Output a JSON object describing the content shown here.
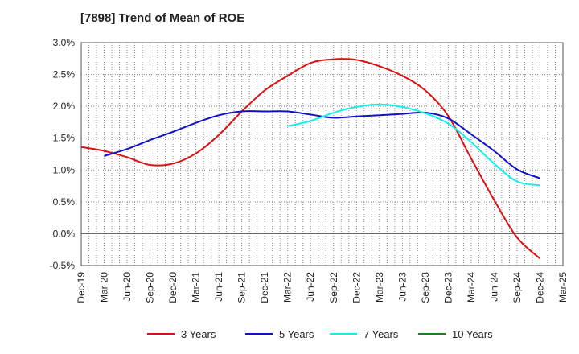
{
  "chart_data": {
    "type": "line",
    "title": "[7898]  Trend of Mean of ROE",
    "xlabel": "",
    "ylabel": "",
    "ylim": [
      -0.5,
      3.0
    ],
    "yticks": [
      "3.0%",
      "2.5%",
      "2.0%",
      "1.5%",
      "1.0%",
      "0.5%",
      "0.0%",
      "-0.5%"
    ],
    "ytick_values": [
      3.0,
      2.5,
      2.0,
      1.5,
      1.0,
      0.5,
      0.0,
      -0.5
    ],
    "x_categories": [
      "Dec-19",
      "Mar-20",
      "Jun-20",
      "Sep-20",
      "Dec-20",
      "Mar-21",
      "Jun-21",
      "Sep-21",
      "Dec-21",
      "Mar-22",
      "Jun-22",
      "Sep-22",
      "Dec-22",
      "Mar-23",
      "Jun-23",
      "Sep-23",
      "Dec-23",
      "Mar-24",
      "Jun-24",
      "Sep-24",
      "Dec-24",
      "Mar-25"
    ],
    "grid": true,
    "legend_position": "bottom",
    "series": [
      {
        "name": "3 Years",
        "color": "#dd1111",
        "values": [
          1.36,
          1.3,
          1.2,
          1.08,
          1.1,
          1.26,
          1.55,
          1.92,
          2.25,
          2.48,
          2.68,
          2.74,
          2.73,
          2.63,
          2.48,
          2.25,
          1.85,
          1.18,
          0.53,
          -0.06,
          -0.39,
          null
        ]
      },
      {
        "name": "5 Years",
        "color": "#1111cc",
        "values": [
          null,
          1.22,
          1.33,
          1.47,
          1.6,
          1.74,
          1.86,
          1.92,
          1.92,
          1.92,
          1.87,
          1.82,
          1.84,
          1.86,
          1.88,
          1.9,
          1.81,
          1.56,
          1.3,
          1.01,
          0.87,
          null
        ]
      },
      {
        "name": "7 Years",
        "color": "#11eeee",
        "values": [
          null,
          null,
          null,
          null,
          null,
          null,
          null,
          null,
          null,
          1.69,
          1.77,
          1.9,
          1.99,
          2.03,
          1.99,
          1.89,
          1.73,
          1.44,
          1.1,
          0.82,
          0.76,
          null
        ]
      },
      {
        "name": "10 Years",
        "color": "#118811",
        "values": [
          null,
          null,
          null,
          null,
          null,
          null,
          null,
          null,
          null,
          null,
          null,
          null,
          null,
          null,
          null,
          null,
          null,
          null,
          null,
          null,
          null,
          null
        ]
      }
    ]
  }
}
